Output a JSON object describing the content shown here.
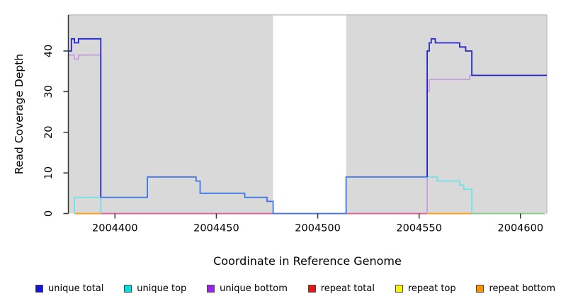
{
  "chart_data": {
    "type": "line",
    "subtype": "step-coverage",
    "title": "",
    "xlabel": "Coordinate in Reference Genome",
    "ylabel": "Read Coverage Depth",
    "xlim": [
      2004377,
      2004613
    ],
    "ylim": [
      0,
      49
    ],
    "xticks": [
      2004400,
      2004450,
      2004500,
      2004550,
      2004600
    ],
    "yticks": [
      0,
      10,
      20,
      30,
      40
    ],
    "grid": false,
    "plot_bg": "#d9d9d9",
    "plot_border": "#c2c2c2",
    "axis_color": "#333333",
    "gap_region": {
      "x0": 2004478,
      "x1": 2004514,
      "color": "#ffffff"
    },
    "legend": [
      {
        "label": "unique total",
        "color": "#1414e0"
      },
      {
        "label": "unique top",
        "color": "#00dede"
      },
      {
        "label": "unique bottom",
        "color": "#a020f0"
      },
      {
        "label": "repeat total",
        "color": "#e81414"
      },
      {
        "label": "repeat top",
        "color": "#f5f500"
      },
      {
        "label": "repeat bottom",
        "color": "#f59300"
      }
    ],
    "baseline_segments": [
      {
        "name": "repeat-total-zero",
        "color": "#df6697",
        "x0": 2004393,
        "x1": 2004554,
        "y": 0
      },
      {
        "name": "repeat-bottom-zero-left",
        "color": "#ff9c1e",
        "x0": 2004380,
        "x1": 2004393,
        "y": 0
      },
      {
        "name": "repeat-bottom-zero-right",
        "color": "#ff9c1e",
        "x0": 2004554,
        "x1": 2004576,
        "y": 0
      },
      {
        "name": "repeat-top-zero-right",
        "color": "#8ccf90",
        "x0": 2004576,
        "x1": 2004612,
        "y": 0
      }
    ],
    "series": [
      {
        "name": "unique bottom",
        "segments": [
          {
            "color": "#c79fdc",
            "points": [
              [
                2004377,
                39
              ],
              [
                2004380,
                39
              ],
              [
                2004380,
                38
              ],
              [
                2004382,
                38
              ],
              [
                2004382,
                39
              ],
              [
                2004393,
                39
              ],
              [
                2004393,
                0
              ]
            ]
          },
          {
            "color": "#c79fdc",
            "points": [
              [
                2004554,
                0
              ],
              [
                2004554,
                30
              ],
              [
                2004555,
                30
              ],
              [
                2004555,
                33
              ],
              [
                2004575,
                33
              ],
              [
                2004575,
                34
              ],
              [
                2004613,
                34
              ]
            ]
          }
        ]
      },
      {
        "name": "unique top",
        "segments": [
          {
            "color": "#70e3e6",
            "points": [
              [
                2004380,
                0
              ],
              [
                2004380,
                4
              ],
              [
                2004393,
                4
              ],
              [
                2004393,
                0
              ]
            ]
          },
          {
            "color": "#70e3e6",
            "points": [
              [
                2004554,
                9
              ],
              [
                2004559,
                9
              ],
              [
                2004559,
                8
              ],
              [
                2004570,
                8
              ],
              [
                2004570,
                7
              ],
              [
                2004572,
                7
              ],
              [
                2004572,
                6
              ],
              [
                2004576,
                6
              ],
              [
                2004576,
                0
              ]
            ]
          }
        ]
      },
      {
        "name": "unique total",
        "segments": [
          {
            "color": "#2626cf",
            "points": [
              [
                2004377,
                40
              ],
              [
                2004378.5,
                40
              ],
              [
                2004378.5,
                43
              ],
              [
                2004380,
                43
              ],
              [
                2004380,
                42
              ],
              [
                2004382,
                42
              ],
              [
                2004382,
                43
              ],
              [
                2004393,
                43
              ],
              [
                2004393,
                4
              ]
            ]
          },
          {
            "color": "#3d79e8",
            "points": [
              [
                2004393,
                4
              ],
              [
                2004416,
                4
              ],
              [
                2004416,
                9
              ],
              [
                2004440,
                9
              ],
              [
                2004440,
                8
              ],
              [
                2004442,
                8
              ],
              [
                2004442,
                5
              ],
              [
                2004464,
                5
              ],
              [
                2004464,
                4
              ],
              [
                2004475,
                4
              ],
              [
                2004475,
                3
              ],
              [
                2004478,
                3
              ],
              [
                2004478,
                0
              ],
              [
                2004514,
                0
              ],
              [
                2004514,
                9
              ],
              [
                2004554,
                9
              ]
            ]
          },
          {
            "color": "#2626cf",
            "points": [
              [
                2004554,
                9
              ],
              [
                2004554,
                40
              ],
              [
                2004555,
                40
              ],
              [
                2004555,
                42
              ],
              [
                2004556,
                42
              ],
              [
                2004556,
                43
              ],
              [
                2004558,
                43
              ],
              [
                2004558,
                42
              ],
              [
                2004570,
                42
              ],
              [
                2004570,
                41
              ],
              [
                2004573,
                41
              ],
              [
                2004573,
                40
              ],
              [
                2004576,
                40
              ],
              [
                2004576,
                34
              ],
              [
                2004613,
                34
              ]
            ]
          }
        ]
      }
    ]
  }
}
